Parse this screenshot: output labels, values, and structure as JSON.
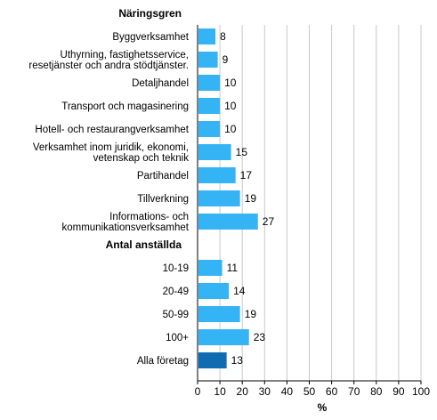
{
  "chart_data": {
    "type": "bar",
    "orientation": "horizontal",
    "xlabel": "%",
    "xlim": [
      0,
      100
    ],
    "xticks": [
      0,
      10,
      20,
      30,
      40,
      50,
      60,
      70,
      80,
      90,
      100
    ],
    "grid": true,
    "colors": {
      "bar": "#34b4f5",
      "total_bar": "#0f6cb0",
      "grid": "#c8c8c8"
    },
    "sections": [
      {
        "title": "Näringsgren",
        "rows": [
          {
            "label": [
              "Byggverksamhet"
            ],
            "value": 8
          },
          {
            "label": [
              "Uthyrning, fastighetsservice,",
              "resetjänster och andra stödtjänster."
            ],
            "value": 9
          },
          {
            "label": [
              "Detaljhandel"
            ],
            "value": 10
          },
          {
            "label": [
              "Transport och magasinering"
            ],
            "value": 10
          },
          {
            "label": [
              "Hotell- och restaurangverksamhet"
            ],
            "value": 10
          },
          {
            "label": [
              "Verksamhet inom juridik, ekonomi,",
              "vetenskap och teknik"
            ],
            "value": 15
          },
          {
            "label": [
              "Partihandel"
            ],
            "value": 17
          },
          {
            "label": [
              "Tillverkning"
            ],
            "value": 19
          },
          {
            "label": [
              "Informations- och",
              "kommunikationsverksamhet"
            ],
            "value": 27
          }
        ]
      },
      {
        "title": "Antal anställda",
        "rows": [
          {
            "label": [
              "10-19"
            ],
            "value": 11
          },
          {
            "label": [
              "20-49"
            ],
            "value": 14
          },
          {
            "label": [
              "50-99"
            ],
            "value": 19
          },
          {
            "label": [
              "100+"
            ],
            "value": 23
          }
        ]
      },
      {
        "title": "",
        "rows": [
          {
            "label": [
              "Alla företag"
            ],
            "value": 13,
            "highlight": true
          }
        ]
      }
    ]
  }
}
